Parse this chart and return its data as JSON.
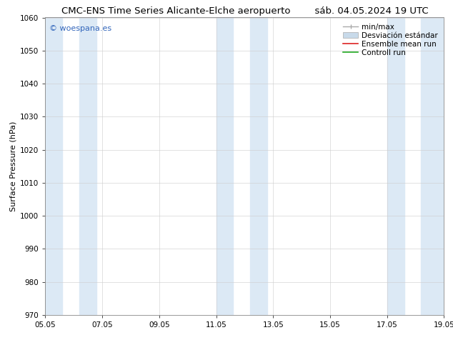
{
  "title_left": "CMC-ENS Time Series Alicante-Elche aeropuerto",
  "title_right": "sáb. 04.05.2024 19 UTC",
  "ylabel": "Surface Pressure (hPa)",
  "ylim": [
    970,
    1060
  ],
  "yticks": [
    970,
    980,
    990,
    1000,
    1010,
    1020,
    1030,
    1040,
    1050,
    1060
  ],
  "xtick_labels": [
    "05.05",
    "07.05",
    "09.05",
    "11.05",
    "13.05",
    "15.05",
    "17.05",
    "19.05"
  ],
  "xtick_positions": [
    0,
    2,
    4,
    6,
    8,
    10,
    12,
    14
  ],
  "xlim": [
    0,
    14
  ],
  "background_color": "#ffffff",
  "plot_bg_color": "#ffffff",
  "shaded_bands": [
    {
      "x_start": 0.0,
      "x_end": 0.6
    },
    {
      "x_start": 1.2,
      "x_end": 1.8
    },
    {
      "x_start": 6.0,
      "x_end": 6.6
    },
    {
      "x_start": 7.2,
      "x_end": 7.8
    },
    {
      "x_start": 12.0,
      "x_end": 12.6
    },
    {
      "x_start": 13.2,
      "x_end": 14.0
    }
  ],
  "band_color": "#dce9f5",
  "watermark_text": "© woespana.es",
  "watermark_color": "#3366bb",
  "legend_min_max_color": "#aaaaaa",
  "legend_std_color": "#c8daea",
  "legend_mean_color": "#dd2222",
  "legend_ctrl_color": "#22aa22",
  "title_fontsize": 9.5,
  "ylabel_fontsize": 8,
  "tick_fontsize": 7.5,
  "legend_fontsize": 7.5,
  "watermark_fontsize": 8
}
